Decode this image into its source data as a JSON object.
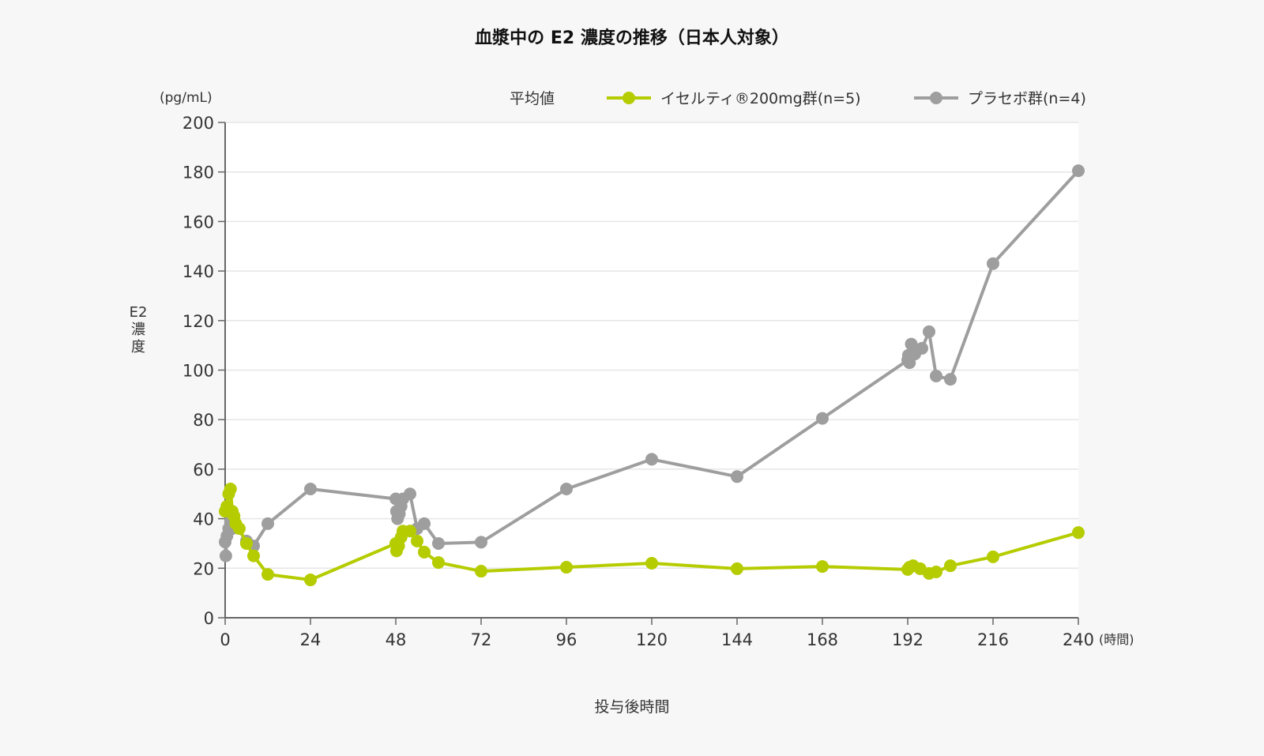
{
  "title": "血漿中の E2 濃度の推移（日本人対象）",
  "legend": {
    "heading": "平均値",
    "items": [
      {
        "label": "イセルティ®200mg群(n=5)",
        "color": "#b5cc00"
      },
      {
        "label": "プラセボ群(n=4)",
        "color": "#9e9e9e"
      }
    ]
  },
  "y_unit": "(pg/mL)",
  "y_label": "E2\n濃\n度",
  "x_label": "投与後時間",
  "x_unit": "(時間)",
  "chart_data": {
    "type": "line",
    "title": "血漿中の E2 濃度の推移（日本人対象）",
    "xlabel": "投与後時間 (時間)",
    "ylabel": "E2 濃度 (pg/mL)",
    "xlim": [
      0,
      240
    ],
    "ylim": [
      0,
      200
    ],
    "x_ticks": [
      0,
      24,
      48,
      72,
      96,
      120,
      144,
      168,
      192,
      216,
      240
    ],
    "y_ticks": [
      0,
      20,
      40,
      60,
      80,
      100,
      120,
      140,
      160,
      180,
      200
    ],
    "grid": "horizontal",
    "legend_position": "top",
    "series": [
      {
        "name": "イセルティ®200mg群(n=5)",
        "color": "#b5cc00",
        "points": [
          [
            0,
            43
          ],
          [
            0.5,
            45
          ],
          [
            1,
            50
          ],
          [
            1.5,
            52
          ],
          [
            2,
            43
          ],
          [
            2.5,
            41
          ],
          [
            3,
            38
          ],
          [
            4,
            36
          ],
          [
            6,
            30
          ],
          [
            8,
            25
          ],
          [
            12,
            17.5
          ],
          [
            24,
            15.3
          ],
          [
            48,
            30
          ],
          [
            48.2,
            27
          ],
          [
            48.8,
            29
          ],
          [
            49.5,
            32.5
          ],
          [
            50,
            35
          ],
          [
            52,
            35
          ],
          [
            54,
            31
          ],
          [
            56,
            26.5
          ],
          [
            60,
            22.3
          ],
          [
            72,
            18.8
          ],
          [
            96,
            20.4
          ],
          [
            120,
            22
          ],
          [
            144,
            19.8
          ],
          [
            168,
            20.7
          ],
          [
            192,
            19.5
          ],
          [
            192.5,
            20.4
          ],
          [
            193.5,
            21
          ],
          [
            195.5,
            19.8
          ],
          [
            198,
            17.9
          ],
          [
            200,
            18.5
          ],
          [
            204,
            21
          ],
          [
            216,
            24.6
          ],
          [
            240,
            34.4
          ]
        ]
      },
      {
        "name": "プラセボ群(n=4)",
        "color": "#9e9e9e",
        "points": [
          [
            0,
            30.6
          ],
          [
            0.2,
            25
          ],
          [
            0.5,
            33
          ],
          [
            1,
            36
          ],
          [
            1.5,
            39
          ],
          [
            2,
            36
          ],
          [
            3,
            37
          ],
          [
            6,
            31
          ],
          [
            8,
            29
          ],
          [
            12,
            38
          ],
          [
            24,
            52
          ],
          [
            48,
            48
          ],
          [
            48.2,
            43
          ],
          [
            48.5,
            40
          ],
          [
            49,
            42
          ],
          [
            49.5,
            45
          ],
          [
            50,
            48
          ],
          [
            52,
            50
          ],
          [
            54,
            36
          ],
          [
            56,
            38
          ],
          [
            60,
            30
          ],
          [
            72,
            30.5
          ],
          [
            96,
            52
          ],
          [
            120,
            64
          ],
          [
            144,
            57
          ],
          [
            168,
            80.5
          ],
          [
            192,
            104
          ],
          [
            192.2,
            106
          ],
          [
            192.5,
            103
          ],
          [
            193,
            110.5
          ],
          [
            194,
            106.5
          ],
          [
            196,
            108.8
          ],
          [
            198,
            115.5
          ],
          [
            200,
            97.6
          ],
          [
            204,
            96.3
          ],
          [
            216,
            143
          ],
          [
            240,
            180.5
          ]
        ]
      }
    ]
  }
}
